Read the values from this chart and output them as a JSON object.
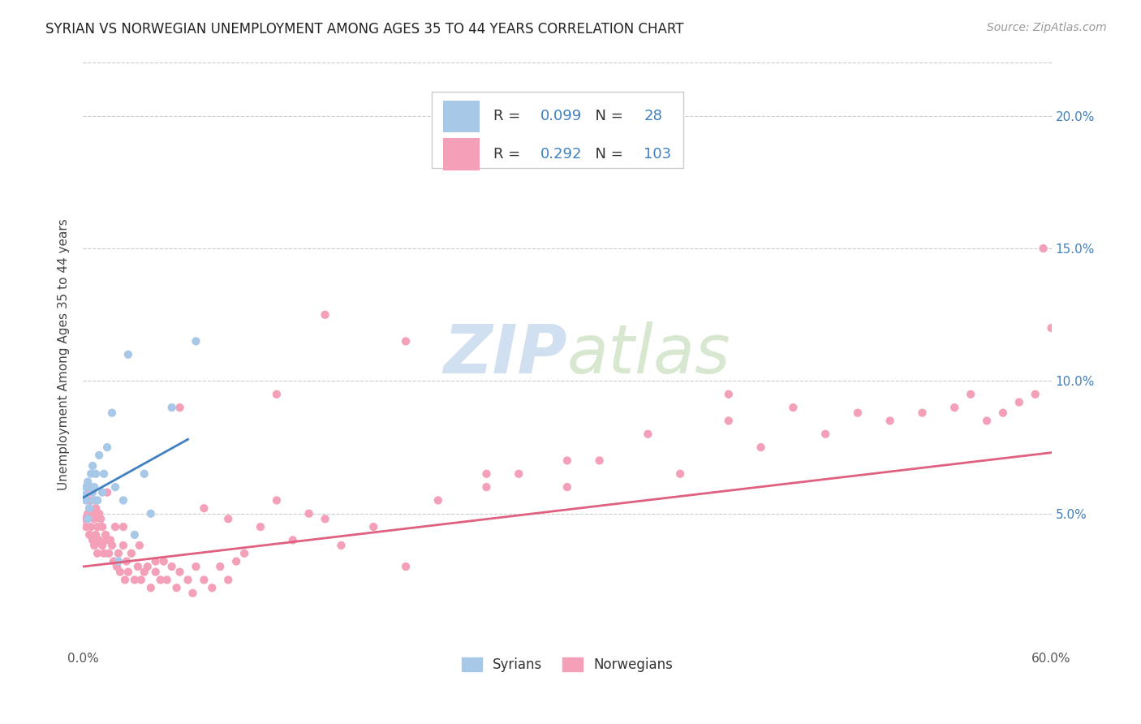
{
  "title": "SYRIAN VS NORWEGIAN UNEMPLOYMENT AMONG AGES 35 TO 44 YEARS CORRELATION CHART",
  "source": "Source: ZipAtlas.com",
  "ylabel": "Unemployment Among Ages 35 to 44 years",
  "xlim": [
    0.0,
    0.6
  ],
  "ylim": [
    0.0,
    0.22
  ],
  "yticks": [
    0.05,
    0.1,
    0.15,
    0.2
  ],
  "yticklabels": [
    "5.0%",
    "10.0%",
    "15.0%",
    "20.0%"
  ],
  "xtick_positions": [
    0.0,
    0.6
  ],
  "xtick_labels": [
    "0.0%",
    "60.0%"
  ],
  "syrian_color": "#a8c8e8",
  "norwegian_color": "#f4a0b8",
  "trend_syrian_color": "#4080c0",
  "trend_norwegian_color": "#e06080",
  "legend_color": "#4080c0",
  "syrian_R": "0.099",
  "syrian_N": "28",
  "norwegian_R": "0.292",
  "norwegian_N": "103",
  "watermark_zip": "ZIP",
  "watermark_atlas": "atlas",
  "watermark_color": "#d0e0f0",
  "syr_x": [
    0.001,
    0.002,
    0.002,
    0.003,
    0.003,
    0.004,
    0.005,
    0.005,
    0.006,
    0.006,
    0.007,
    0.007,
    0.008,
    0.009,
    0.01,
    0.012,
    0.013,
    0.015,
    0.018,
    0.02,
    0.022,
    0.025,
    0.028,
    0.032,
    0.038,
    0.042,
    0.055,
    0.07
  ],
  "syr_y": [
    0.057,
    0.055,
    0.06,
    0.048,
    0.062,
    0.052,
    0.06,
    0.065,
    0.058,
    0.068,
    0.055,
    0.06,
    0.065,
    0.055,
    0.072,
    0.058,
    0.065,
    0.075,
    0.088,
    0.06,
    0.032,
    0.055,
    0.11,
    0.042,
    0.065,
    0.05,
    0.09,
    0.115
  ],
  "nor_x": [
    0.001,
    0.002,
    0.002,
    0.003,
    0.003,
    0.004,
    0.004,
    0.005,
    0.005,
    0.006,
    0.006,
    0.007,
    0.007,
    0.008,
    0.008,
    0.009,
    0.009,
    0.01,
    0.01,
    0.011,
    0.012,
    0.012,
    0.013,
    0.014,
    0.015,
    0.016,
    0.017,
    0.018,
    0.019,
    0.02,
    0.021,
    0.022,
    0.023,
    0.025,
    0.026,
    0.027,
    0.028,
    0.03,
    0.032,
    0.034,
    0.036,
    0.038,
    0.04,
    0.042,
    0.045,
    0.048,
    0.05,
    0.052,
    0.055,
    0.058,
    0.06,
    0.065,
    0.068,
    0.07,
    0.075,
    0.08,
    0.085,
    0.09,
    0.095,
    0.1,
    0.11,
    0.12,
    0.13,
    0.14,
    0.15,
    0.16,
    0.18,
    0.2,
    0.22,
    0.25,
    0.27,
    0.3,
    0.32,
    0.35,
    0.37,
    0.4,
    0.42,
    0.44,
    0.46,
    0.48,
    0.5,
    0.52,
    0.54,
    0.55,
    0.56,
    0.57,
    0.58,
    0.59,
    0.595,
    0.6,
    0.015,
    0.025,
    0.035,
    0.045,
    0.06,
    0.075,
    0.09,
    0.12,
    0.15,
    0.2,
    0.25,
    0.3,
    0.4
  ],
  "nor_y": [
    0.048,
    0.045,
    0.055,
    0.05,
    0.058,
    0.042,
    0.052,
    0.055,
    0.045,
    0.05,
    0.04,
    0.038,
    0.048,
    0.042,
    0.052,
    0.035,
    0.045,
    0.05,
    0.04,
    0.048,
    0.038,
    0.045,
    0.035,
    0.042,
    0.04,
    0.035,
    0.04,
    0.038,
    0.032,
    0.045,
    0.03,
    0.035,
    0.028,
    0.038,
    0.025,
    0.032,
    0.028,
    0.035,
    0.025,
    0.03,
    0.025,
    0.028,
    0.03,
    0.022,
    0.028,
    0.025,
    0.032,
    0.025,
    0.03,
    0.022,
    0.028,
    0.025,
    0.02,
    0.03,
    0.025,
    0.022,
    0.03,
    0.025,
    0.032,
    0.035,
    0.045,
    0.055,
    0.04,
    0.05,
    0.048,
    0.038,
    0.045,
    0.03,
    0.055,
    0.065,
    0.065,
    0.06,
    0.07,
    0.08,
    0.065,
    0.085,
    0.075,
    0.09,
    0.08,
    0.088,
    0.085,
    0.088,
    0.09,
    0.095,
    0.085,
    0.088,
    0.092,
    0.095,
    0.15,
    0.12,
    0.058,
    0.045,
    0.038,
    0.032,
    0.09,
    0.052,
    0.048,
    0.095,
    0.125,
    0.115,
    0.06,
    0.07,
    0.095
  ],
  "syr_trend_x": [
    0.0,
    0.065
  ],
  "syr_trend_y": [
    0.056,
    0.078
  ],
  "nor_trend_x": [
    0.0,
    0.6
  ],
  "nor_trend_y": [
    0.03,
    0.073
  ]
}
